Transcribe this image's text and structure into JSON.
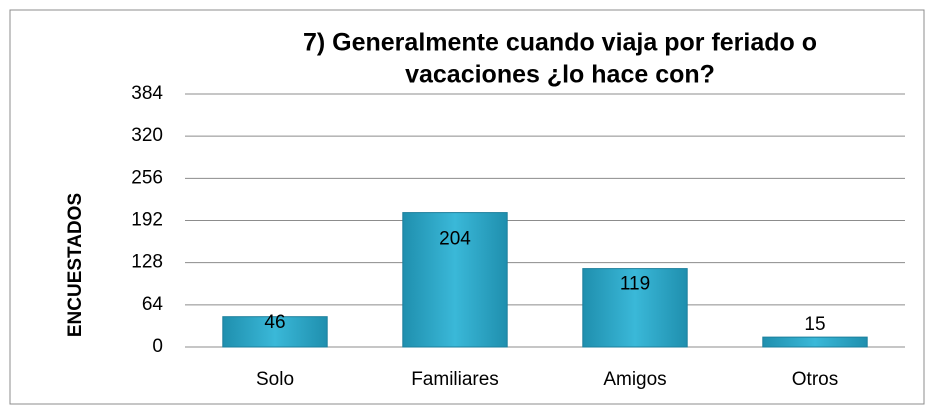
{
  "chart_data": {
    "type": "bar",
    "title": [
      "7)      Generalmente cuando viaja por feriado o",
      "vacaciones ¿lo hace con?"
    ],
    "ylabel": "ENCUESTADOS",
    "categories": [
      "Solo",
      "Familiares",
      "Amigos",
      "Otros"
    ],
    "values": [
      46,
      204,
      119,
      15
    ],
    "color": "#2ba6c6",
    "ylim": [
      0,
      384
    ],
    "yticks": [
      0,
      64,
      128,
      192,
      256,
      320,
      384
    ],
    "grid": true
  }
}
